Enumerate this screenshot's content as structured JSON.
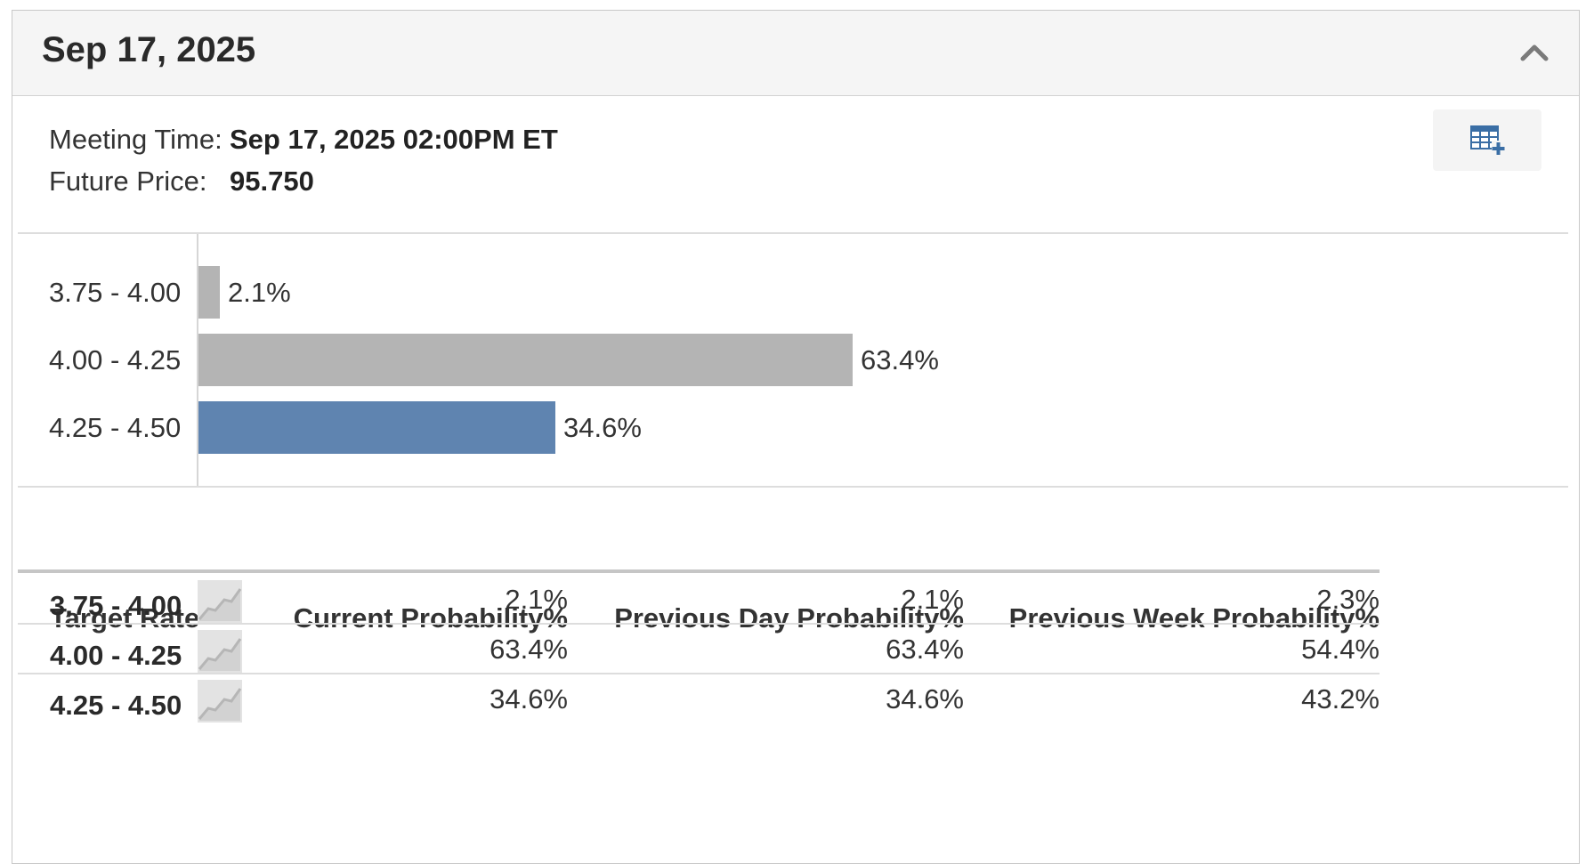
{
  "header": {
    "title": "Sep 17, 2025"
  },
  "meta": {
    "meeting_time_label": "Meeting Time:",
    "meeting_time_value": "Sep 17, 2025 02:00PM ET",
    "future_price_label": "Future Price:",
    "future_price_value": "95.750"
  },
  "chart_data": {
    "type": "bar",
    "orientation": "horizontal",
    "categories": [
      "3.75 - 4.00",
      "4.00 - 4.25",
      "4.25 - 4.50"
    ],
    "values": [
      2.1,
      63.4,
      34.6
    ],
    "value_labels": [
      "2.1%",
      "63.4%",
      "34.6%"
    ],
    "colors": [
      "#b4b4b4",
      "#b4b4b4",
      "#5f84b0"
    ],
    "xlim": [
      0,
      100
    ],
    "title": "",
    "xlabel": "",
    "ylabel": ""
  },
  "table": {
    "columns": [
      "Target Rate",
      "Current Probability%",
      "Previous Day Probability%",
      "Previous Week Probability%"
    ],
    "rows": [
      {
        "target_rate": "3.75 - 4.00",
        "current": "2.1%",
        "previous_day": "2.1%",
        "previous_week": "2.3%"
      },
      {
        "target_rate": "4.00 - 4.25",
        "current": "63.4%",
        "previous_day": "63.4%",
        "previous_week": "54.4%"
      },
      {
        "target_rate": "4.25 - 4.50",
        "current": "34.6%",
        "previous_day": "34.6%",
        "previous_week": "43.2%"
      }
    ]
  },
  "icons": {
    "collapse": "chevron-up-icon",
    "table_view": "table-add-icon",
    "sparkline": "line-chart-icon"
  },
  "colors": {
    "header_bg": "#f5f5f5",
    "bar_gray": "#b4b4b4",
    "bar_blue": "#5f84b0",
    "icon_blue": "#3a6ea5"
  }
}
